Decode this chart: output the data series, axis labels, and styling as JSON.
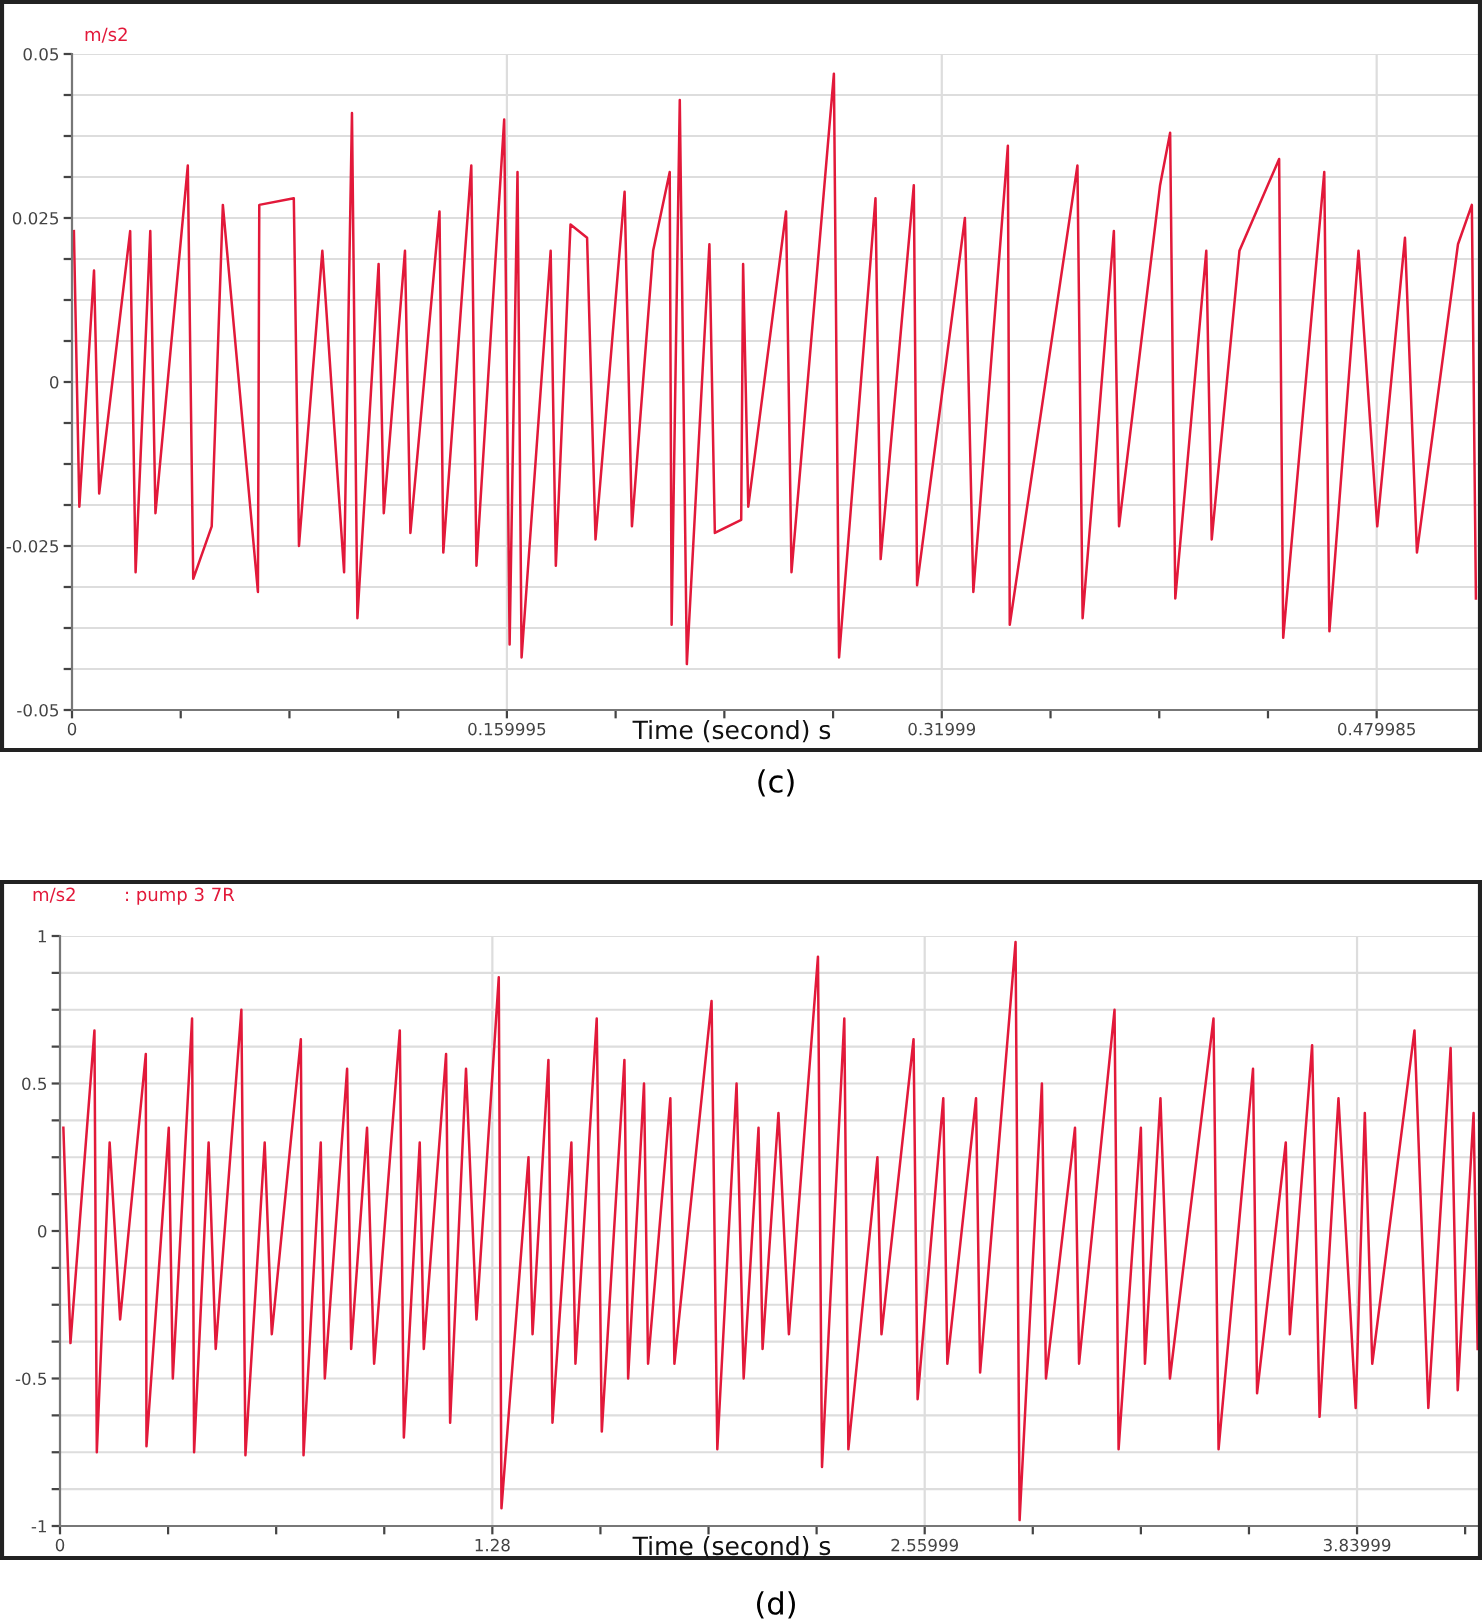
{
  "chart_data": [
    {
      "type": "line",
      "ylabel": "m/s2",
      "xlabel": "Time (second) s",
      "annotations": [
        "(c)"
      ],
      "grid": true,
      "marker": "none",
      "line_style": "solid",
      "xlim": [
        0,
        0.518
      ],
      "ylim": [
        -0.05,
        0.05
      ],
      "xticks": [
        0,
        {
          "value": 0.04,
          "label": null
        },
        {
          "value": 0.08,
          "label": null
        },
        {
          "value": 0.12,
          "label": null
        },
        {
          "value": 0.159995,
          "label": "0.159995"
        },
        {
          "value": 0.2,
          "label": null
        },
        {
          "value": 0.24,
          "label": null
        },
        {
          "value": 0.28,
          "label": null
        },
        {
          "value": 0.31999,
          "label": "0.31999"
        },
        {
          "value": 0.36,
          "label": null
        },
        {
          "value": 0.4,
          "label": null
        },
        {
          "value": 0.44,
          "label": null
        },
        {
          "value": 0.479985,
          "label": "0.479985"
        }
      ],
      "yticks": [
        -0.05,
        {
          "value": -0.04375,
          "label": null
        },
        {
          "value": -0.0375,
          "label": null
        },
        {
          "value": -0.03125,
          "label": null
        },
        -0.025,
        {
          "value": -0.01875,
          "label": null
        },
        {
          "value": -0.0125,
          "label": null
        },
        {
          "value": -0.00625,
          "label": null
        },
        0,
        {
          "value": 0.00625,
          "label": null
        },
        {
          "value": 0.0125,
          "label": null
        },
        {
          "value": 0.01875,
          "label": null
        },
        0.025,
        {
          "value": 0.03125,
          "label": null
        },
        {
          "value": 0.0375,
          "label": null
        },
        {
          "value": 0.04375,
          "label": null
        },
        0.05
      ],
      "series": [
        {
          "color": "#e2193a",
          "x": [
            0.0007,
            0.0027,
            0.0081,
            0.01,
            0.0214,
            0.0234,
            0.0288,
            0.0307,
            0.0426,
            0.0446,
            0.0514,
            0.0555,
            0.0684,
            0.0689,
            0.0816,
            0.0835,
            0.0921,
            0.1001,
            0.103,
            0.105,
            0.1128,
            0.1147,
            0.1225,
            0.1245,
            0.1352,
            0.1366,
            0.1469,
            0.1488,
            0.159,
            0.161,
            0.1639,
            0.1654,
            0.1761,
            0.178,
            0.1834,
            0.1895,
            0.1926,
            0.2033,
            0.206,
            0.2138,
            0.2199,
            0.2206,
            0.2236,
            0.2262,
            0.2345,
            0.2365,
            0.2462,
            0.2469,
            0.2488,
            0.2627,
            0.2647,
            0.2803,
            0.2822,
            0.2956,
            0.2975,
            0.3097,
            0.3109,
            0.3285,
            0.3316,
            0.3443,
            0.345,
            0.3699,
            0.3718,
            0.3833,
            0.3852,
            0.4003,
            0.404,
            0.4059,
            0.4173,
            0.4193,
            0.4295,
            0.4441,
            0.4456,
            0.4607,
            0.4626,
            0.4733,
            0.4802,
            0.4904,
            0.4948,
            0.5099,
            0.515,
            0.5165
          ],
          "values": [
            0.023,
            -0.019,
            0.017,
            -0.017,
            0.023,
            -0.029,
            0.023,
            -0.02,
            0.033,
            -0.03,
            -0.022,
            0.027,
            -0.032,
            0.027,
            0.028,
            -0.025,
            0.02,
            -0.029,
            0.041,
            -0.036,
            0.018,
            -0.02,
            0.02,
            -0.023,
            0.026,
            -0.026,
            0.033,
            -0.028,
            0.04,
            -0.04,
            0.032,
            -0.042,
            0.02,
            -0.028,
            0.024,
            0.022,
            -0.024,
            0.029,
            -0.022,
            0.02,
            0.032,
            -0.037,
            0.043,
            -0.043,
            0.021,
            -0.023,
            -0.021,
            0.018,
            -0.019,
            0.026,
            -0.029,
            0.047,
            -0.042,
            0.028,
            -0.027,
            0.03,
            -0.031,
            0.025,
            -0.032,
            0.036,
            -0.037,
            0.033,
            -0.036,
            0.023,
            -0.022,
            0.03,
            0.038,
            -0.033,
            0.02,
            -0.024,
            0.02,
            0.034,
            -0.039,
            0.032,
            -0.038,
            0.02,
            -0.022,
            0.022,
            -0.026,
            0.021,
            0.027,
            -0.033
          ]
        }
      ]
    },
    {
      "type": "line",
      "ylabel": "m/s2",
      "xlabel": "Time (second) s",
      "annotations": [
        "(d)"
      ],
      "grid": true,
      "marker": "none",
      "line_style": "solid",
      "xlim": [
        0,
        4.204
      ],
      "ylim": [
        -1,
        1
      ],
      "xticks": [
        0,
        {
          "value": 0.32,
          "label": null
        },
        {
          "value": 0.64,
          "label": null
        },
        {
          "value": 0.96,
          "label": null
        },
        1.28,
        {
          "value": 1.6,
          "label": null
        },
        {
          "value": 1.92,
          "label": null
        },
        {
          "value": 2.24,
          "label": null
        },
        {
          "value": 2.55999,
          "label": "2.55999"
        },
        {
          "value": 2.88,
          "label": null
        },
        {
          "value": 3.2,
          "label": null
        },
        {
          "value": 3.52,
          "label": null
        },
        {
          "value": 3.83999,
          "label": "3.83999"
        },
        {
          "value": 4.16,
          "label": null
        }
      ],
      "yticks": [
        -1,
        {
          "value": -0.875,
          "label": null
        },
        {
          "value": -0.75,
          "label": null
        },
        {
          "value": -0.625,
          "label": null
        },
        -0.5,
        {
          "value": -0.375,
          "label": null
        },
        {
          "value": -0.25,
          "label": null
        },
        {
          "value": -0.125,
          "label": null
        },
        0,
        {
          "value": 0.125,
          "label": null
        },
        {
          "value": 0.25,
          "label": null
        },
        {
          "value": 0.375,
          "label": null
        },
        0.5,
        {
          "value": 0.625,
          "label": null
        },
        {
          "value": 0.75,
          "label": null
        },
        {
          "value": 0.875,
          "label": null
        },
        1
      ],
      "series": [
        {
          "name": ": pump 3 7R",
          "color": "#e2193a",
          "x": [
            0.01,
            0.031,
            0.102,
            0.109,
            0.147,
            0.178,
            0.254,
            0.256,
            0.322,
            0.334,
            0.391,
            0.397,
            0.44,
            0.461,
            0.537,
            0.549,
            0.606,
            0.627,
            0.713,
            0.721,
            0.772,
            0.784,
            0.85,
            0.862,
            0.909,
            0.93,
            1.006,
            1.018,
            1.065,
            1.077,
            1.143,
            1.155,
            1.202,
            1.233,
            1.299,
            1.307,
            1.387,
            1.399,
            1.446,
            1.458,
            1.514,
            1.526,
            1.589,
            1.604,
            1.671,
            1.682,
            1.729,
            1.741,
            1.807,
            1.819,
            1.929,
            1.946,
            2.003,
            2.024,
            2.068,
            2.08,
            2.127,
            2.158,
            2.244,
            2.256,
            2.322,
            2.334,
            2.42,
            2.432,
            2.527,
            2.539,
            2.615,
            2.627,
            2.712,
            2.724,
            2.829,
            2.841,
            2.907,
            2.919,
            3.005,
            3.017,
            3.122,
            3.134,
            3.2,
            3.212,
            3.258,
            3.286,
            3.415,
            3.43,
            3.532,
            3.544,
            3.629,
            3.641,
            3.707,
            3.729,
            3.785,
            3.836,
            3.863,
            3.885,
            4.01,
            4.051,
            4.117,
            4.138,
            4.185,
            4.197
          ],
          "values": [
            0.35,
            -0.38,
            0.68,
            -0.75,
            0.3,
            -0.3,
            0.6,
            -0.73,
            0.35,
            -0.5,
            0.72,
            -0.75,
            0.3,
            -0.4,
            0.75,
            -0.76,
            0.3,
            -0.35,
            0.65,
            -0.76,
            0.3,
            -0.5,
            0.55,
            -0.4,
            0.35,
            -0.45,
            0.68,
            -0.7,
            0.3,
            -0.4,
            0.6,
            -0.65,
            0.55,
            -0.3,
            0.86,
            -0.94,
            0.25,
            -0.35,
            0.58,
            -0.65,
            0.3,
            -0.45,
            0.72,
            -0.68,
            0.58,
            -0.5,
            0.5,
            -0.45,
            0.45,
            -0.45,
            0.78,
            -0.74,
            0.5,
            -0.5,
            0.35,
            -0.4,
            0.4,
            -0.35,
            0.93,
            -0.8,
            0.72,
            -0.74,
            0.25,
            -0.35,
            0.65,
            -0.57,
            0.45,
            -0.45,
            0.45,
            -0.48,
            0.98,
            -0.98,
            0.5,
            -0.5,
            0.35,
            -0.45,
            0.75,
            -0.74,
            0.35,
            -0.45,
            0.45,
            -0.5,
            0.72,
            -0.74,
            0.55,
            -0.55,
            0.3,
            -0.35,
            0.63,
            -0.63,
            0.45,
            -0.6,
            0.4,
            -0.45,
            0.68,
            -0.6,
            0.62,
            -0.54,
            0.4,
            -0.4
          ]
        }
      ]
    }
  ]
}
